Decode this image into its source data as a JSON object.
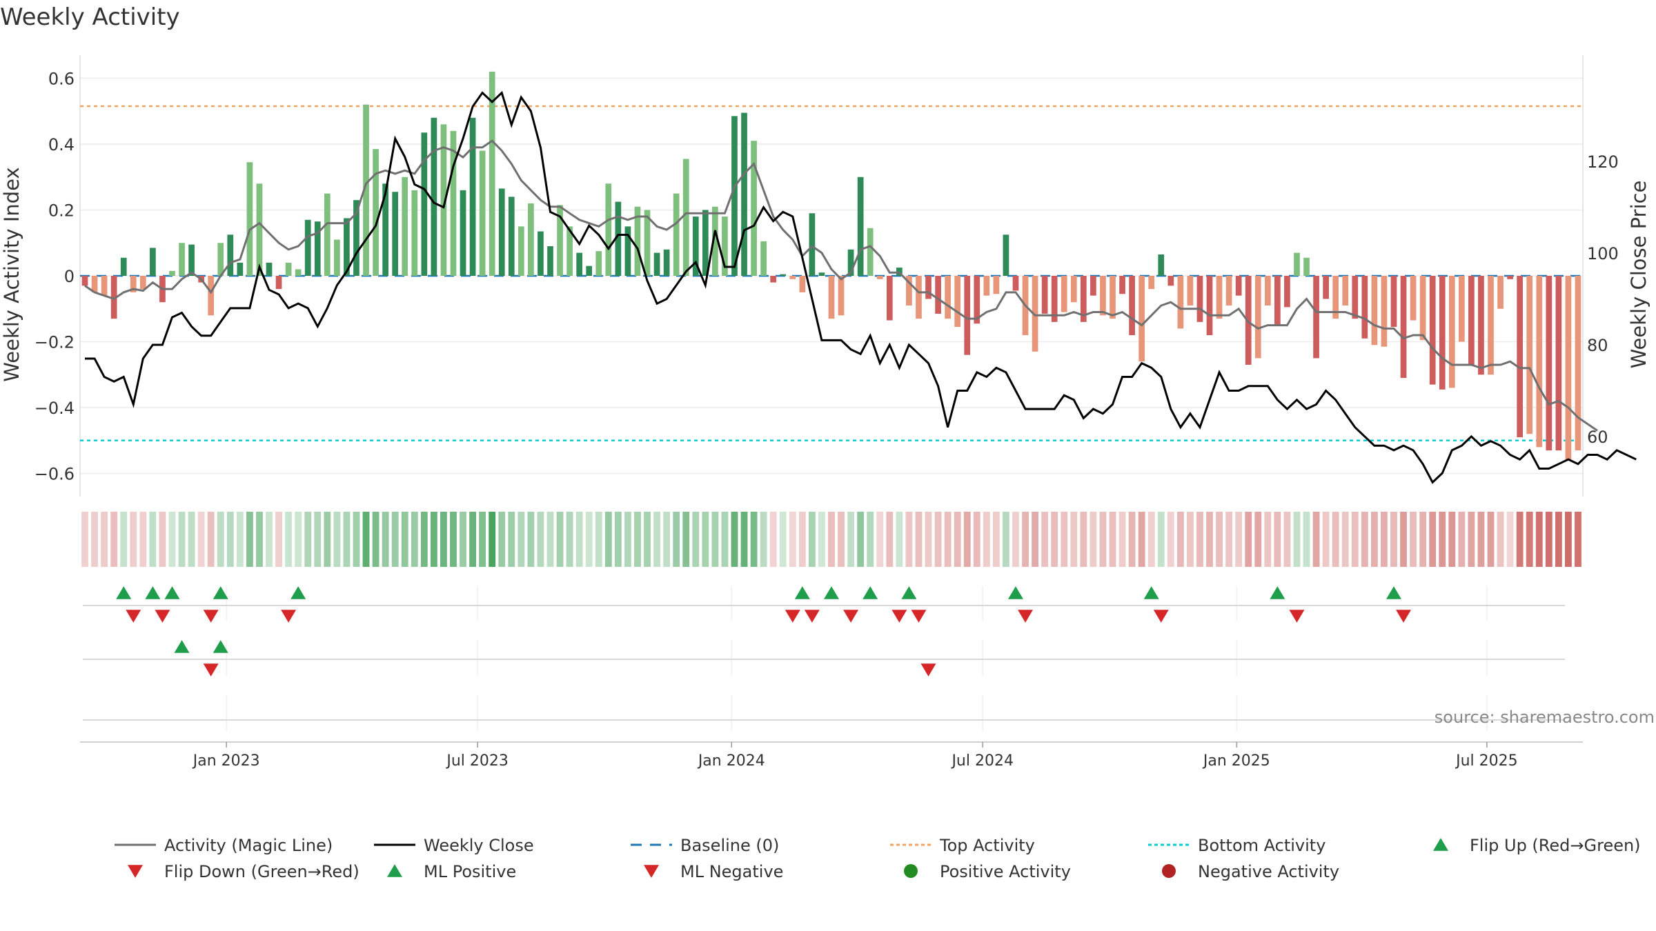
{
  "chart_data": {
    "type": "bar",
    "title": "Weekly Activity",
    "source": "source: sharemaestro.com",
    "ylabel_left": "Weekly Activity Index",
    "ylabel_right": "Weekly Close Price",
    "y_left_lim": [
      -0.67,
      0.67
    ],
    "y_left_ticks": [
      0.6,
      0.4,
      0.2,
      0,
      -0.2,
      -0.4,
      -0.6
    ],
    "y_left_tick_labels": [
      "0.6",
      "0.4",
      "0.2",
      "0",
      "−0.2",
      "−0.4",
      "−0.6"
    ],
    "y_right_lim": [
      46.9,
      143.2
    ],
    "y_right_ticks": [
      120,
      100,
      80,
      60
    ],
    "y_right_tick_labels": [
      "120",
      "100",
      "80",
      "60"
    ],
    "x_tick_labels": [
      "Jan 2023",
      "Jul 2023",
      "Jan 2024",
      "Jul 2024",
      "Jan 2025",
      "Jul 2025"
    ],
    "x_tick_weeks": [
      14.6,
      40.5,
      66.7,
      92.6,
      118.8,
      144.6
    ],
    "top_activity": 0.515,
    "bottom_activity": -0.5,
    "activity": [
      -0.03,
      -0.05,
      -0.06,
      -0.13,
      0.055,
      -0.05,
      -0.04,
      0.085,
      -0.08,
      0.015,
      0.1,
      0.095,
      -0.02,
      -0.12,
      0.1,
      0.125,
      0.04,
      0.345,
      0.28,
      0.04,
      -0.04,
      0.04,
      0.02,
      0.17,
      0.165,
      0.25,
      0.11,
      0.175,
      0.23,
      0.52,
      0.385,
      0.28,
      0.255,
      0.3,
      0.26,
      0.435,
      0.48,
      0.46,
      0.44,
      0.26,
      0.48,
      0.38,
      0.62,
      0.265,
      0.24,
      0.15,
      0.22,
      0.135,
      0.09,
      0.215,
      0.15,
      0.07,
      0.03,
      0.075,
      0.28,
      0.225,
      0.15,
      0.21,
      0.2,
      0.07,
      0.08,
      0.25,
      0.355,
      0.18,
      0.2,
      0.21,
      0.18,
      0.485,
      0.495,
      0.41,
      0.105,
      -0.02,
      0.005,
      -0.01,
      -0.05,
      0.19,
      0.01,
      -0.13,
      -0.12,
      0.08,
      0.3,
      0.145,
      -0.01,
      -0.135,
      0.025,
      -0.09,
      -0.13,
      -0.07,
      -0.115,
      -0.13,
      -0.155,
      -0.24,
      -0.145,
      -0.06,
      -0.055,
      0.125,
      -0.045,
      -0.18,
      -0.23,
      -0.115,
      -0.14,
      -0.11,
      -0.08,
      -0.14,
      -0.06,
      -0.12,
      -0.13,
      -0.055,
      -0.18,
      -0.26,
      -0.04,
      0.065,
      -0.03,
      -0.16,
      -0.09,
      -0.14,
      -0.18,
      -0.13,
      -0.09,
      -0.06,
      -0.27,
      -0.25,
      -0.09,
      -0.15,
      -0.095,
      0.07,
      0.055,
      -0.25,
      -0.07,
      -0.13,
      -0.09,
      -0.13,
      -0.19,
      -0.21,
      -0.215,
      -0.155,
      -0.31,
      -0.135,
      -0.195,
      -0.33,
      -0.345,
      -0.34,
      -0.2,
      -0.27,
      -0.3,
      -0.3,
      -0.1,
      -0.01,
      -0.49,
      -0.48,
      -0.52,
      -0.53,
      -0.53,
      -0.56,
      -0.53
    ],
    "magic_line": [
      -0.03,
      -0.05,
      -0.06,
      -0.07,
      -0.05,
      -0.04,
      -0.045,
      -0.02,
      -0.04,
      -0.04,
      -0.01,
      0.01,
      -0.01,
      -0.05,
      0.0,
      0.04,
      0.05,
      0.14,
      0.16,
      0.13,
      0.1,
      0.08,
      0.09,
      0.12,
      0.13,
      0.16,
      0.16,
      0.16,
      0.19,
      0.28,
      0.31,
      0.32,
      0.31,
      0.32,
      0.31,
      0.35,
      0.38,
      0.39,
      0.38,
      0.36,
      0.39,
      0.39,
      0.41,
      0.38,
      0.34,
      0.29,
      0.26,
      0.23,
      0.21,
      0.21,
      0.19,
      0.17,
      0.16,
      0.15,
      0.17,
      0.18,
      0.17,
      0.18,
      0.18,
      0.15,
      0.14,
      0.16,
      0.19,
      0.19,
      0.19,
      0.19,
      0.19,
      0.27,
      0.31,
      0.34,
      0.26,
      0.18,
      0.14,
      0.11,
      0.06,
      0.09,
      0.07,
      0.02,
      -0.01,
      0.01,
      0.08,
      0.09,
      0.06,
      0.01,
      0.01,
      -0.02,
      -0.05,
      -0.05,
      -0.07,
      -0.09,
      -0.11,
      -0.13,
      -0.13,
      -0.11,
      -0.1,
      -0.05,
      -0.05,
      -0.09,
      -0.12,
      -0.12,
      -0.12,
      -0.12,
      -0.11,
      -0.12,
      -0.11,
      -0.11,
      -0.12,
      -0.11,
      -0.13,
      -0.15,
      -0.12,
      -0.09,
      -0.08,
      -0.1,
      -0.1,
      -0.1,
      -0.12,
      -0.12,
      -0.12,
      -0.1,
      -0.14,
      -0.16,
      -0.15,
      -0.15,
      -0.15,
      -0.1,
      -0.07,
      -0.11,
      -0.11,
      -0.11,
      -0.11,
      -0.12,
      -0.13,
      -0.15,
      -0.16,
      -0.16,
      -0.19,
      -0.18,
      -0.18,
      -0.22,
      -0.25,
      -0.27,
      -0.27,
      -0.27,
      -0.28,
      -0.27,
      -0.27,
      -0.26,
      -0.28,
      -0.28,
      -0.34,
      -0.39,
      -0.38,
      -0.4,
      -0.43,
      -0.45,
      -0.47
    ],
    "weekly_close": [
      77,
      77,
      73,
      72,
      73,
      67,
      77,
      80,
      80,
      86,
      87,
      84,
      82,
      82,
      85,
      88,
      88,
      88,
      97,
      92,
      91,
      88,
      89,
      88,
      84,
      88,
      93,
      96,
      100,
      103,
      106,
      113,
      125,
      121,
      115,
      114,
      111,
      110,
      119,
      125,
      132,
      135,
      133,
      135,
      128,
      134,
      131,
      123,
      109,
      108,
      105,
      102,
      106,
      104,
      101,
      104,
      104,
      101,
      94,
      89,
      90,
      93,
      96,
      98,
      93,
      105,
      97,
      97,
      105,
      106,
      110,
      107,
      109,
      108,
      99,
      90,
      81,
      81,
      81,
      79,
      78,
      82,
      76,
      80,
      75,
      80,
      78,
      76,
      71,
      62,
      70,
      70,
      74,
      73,
      75,
      74,
      70,
      66,
      66,
      66,
      66,
      69,
      68,
      64,
      66,
      65,
      67,
      73,
      73,
      76,
      75,
      73,
      66,
      62,
      65,
      62,
      68,
      74,
      70,
      70,
      71,
      71,
      71,
      68,
      66,
      68,
      66,
      67,
      70,
      68,
      65,
      62,
      60,
      58,
      58,
      57,
      58,
      57,
      54,
      50,
      52,
      57,
      58,
      60,
      58,
      59,
      58,
      56,
      55,
      57,
      53,
      53,
      54,
      55,
      54,
      56,
      56,
      55,
      57,
      56,
      55
    ],
    "flip_up": [
      4,
      7,
      9,
      14,
      22,
      74,
      77,
      81,
      85,
      96,
      110,
      123,
      135
    ],
    "flip_down": [
      5,
      8,
      13,
      21,
      73,
      75,
      79,
      84,
      86,
      97,
      111,
      125,
      136
    ],
    "ml_positive": [
      10,
      14
    ],
    "ml_negative": [
      13,
      87
    ],
    "legend": [
      "Activity (Magic Line)",
      "Weekly Close",
      "Baseline (0)",
      "Top Activity",
      "Bottom Activity",
      "Flip Up (Red→Green)",
      "Flip Down (Green→Red)",
      "ML Positive",
      "ML Negative",
      "Positive Activity",
      "Negative Activity"
    ],
    "legend_placement": "bottom"
  },
  "colors": {
    "pos_strong": "#2e8b57",
    "pos_light": "#7ebf7e",
    "neg_strong": "#cd5c5c",
    "neg_light": "#e8967a",
    "magic_line": "#707070",
    "close_line": "#000000",
    "baseline": "#1f77b4",
    "top_activity": "#f4a460",
    "bottom_activity": "#00ced1",
    "marker_up": "#1e9e4a",
    "marker_down": "#d62728",
    "positive_dot": "#228b22",
    "negative_dot": "#b22222"
  }
}
